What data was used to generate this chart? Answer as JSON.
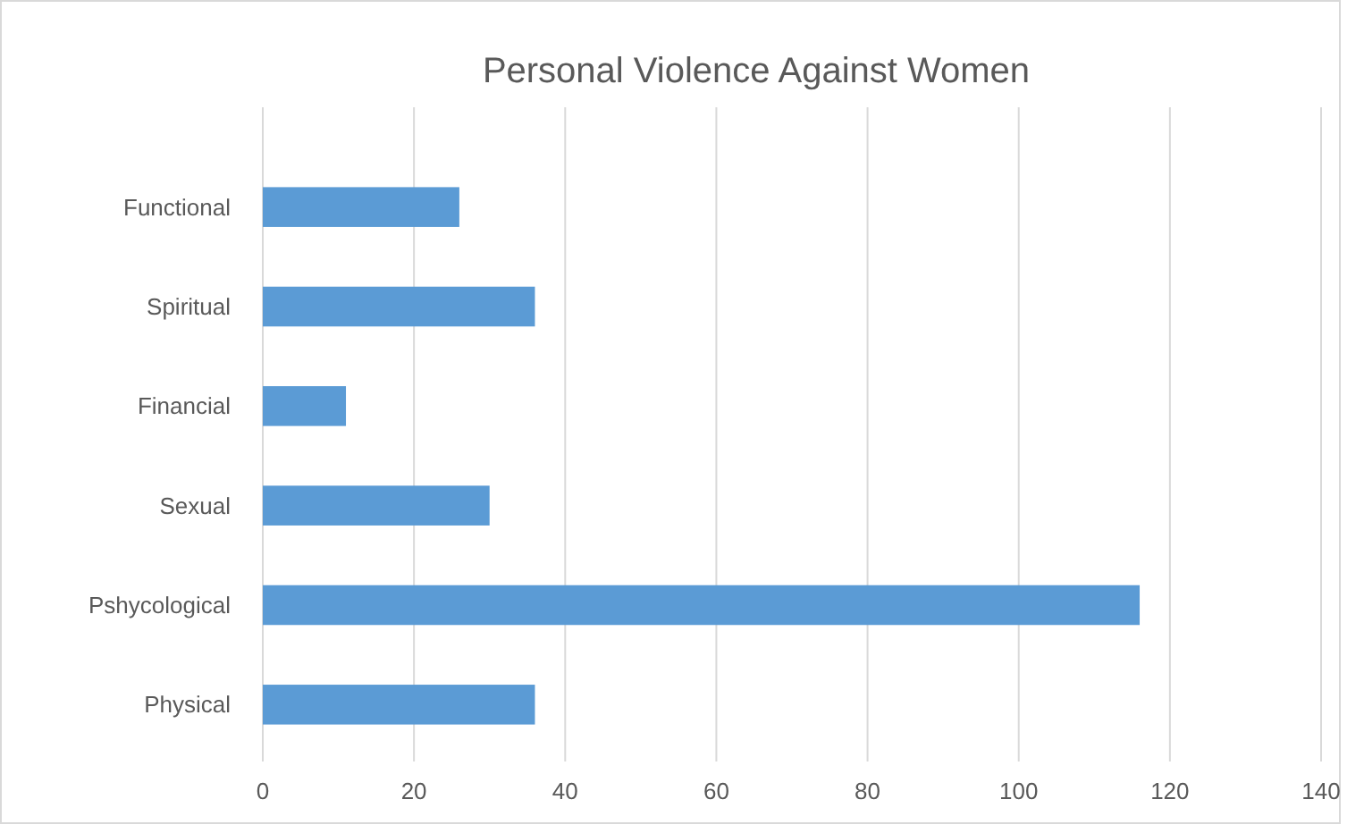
{
  "chart_data": {
    "type": "bar",
    "orientation": "horizontal",
    "title": "Personal Violence Against Women",
    "categories": [
      "Functional",
      "Spiritual",
      "Financial",
      "Sexual",
      "Pshycological",
      "Physical"
    ],
    "values": [
      26,
      36,
      11,
      30,
      116,
      36
    ],
    "color": "#5b9bd5",
    "xlim": [
      0,
      140
    ],
    "xticks": [
      0,
      20,
      40,
      60,
      80,
      100,
      120,
      140
    ],
    "grid": "x"
  }
}
